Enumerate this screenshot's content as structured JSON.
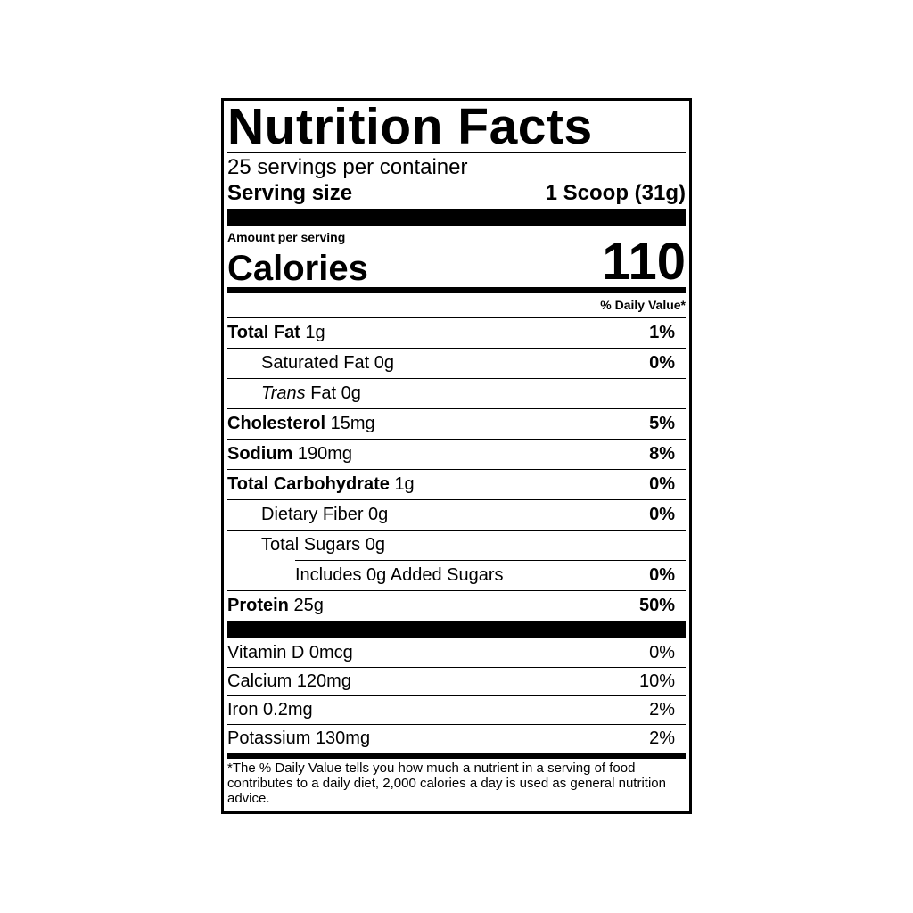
{
  "header": {
    "title": "Nutrition Facts",
    "servings": "25 servings per container",
    "serving_size_label": "Serving size",
    "serving_size": "1 Scoop (31g)"
  },
  "calories": {
    "amount_label": "Amount per serving",
    "label": "Calories",
    "value": "110"
  },
  "daily_value_header": "% Daily Value*",
  "nutrients": [
    {
      "name": "Total Fat",
      "amount": "1g",
      "dv": "1%",
      "sub": [
        {
          "name": "Saturated Fat",
          "amount": "0g",
          "dv": "0%"
        },
        {
          "name_italic": "Trans",
          "name": "Fat",
          "amount": "0g"
        }
      ]
    },
    {
      "name": "Cholesterol",
      "amount": "15mg",
      "dv": "5%"
    },
    {
      "name": "Sodium",
      "amount": "190mg",
      "dv": "8%"
    },
    {
      "name": "Total Carbohydrate",
      "amount": "1g",
      "dv": "0%",
      "sub": [
        {
          "name": "Dietary Fiber",
          "amount": "0g",
          "dv": "0%"
        },
        {
          "name": "Total Sugars",
          "amount": "0g",
          "sub": [
            {
              "name": "Includes 0g Added Sugars",
              "dv": "0%"
            }
          ]
        }
      ]
    },
    {
      "name": "Protein",
      "amount": "25g",
      "dv": "50%"
    }
  ],
  "vitamins": [
    {
      "name": "Vitamin D",
      "amount": "0mcg",
      "dv": "0%"
    },
    {
      "name": "Calcium",
      "amount": "120mg",
      "dv": "10%"
    },
    {
      "name": "Iron",
      "amount": "0.2mg",
      "dv": "2%"
    },
    {
      "name": "Potassium",
      "amount": "130mg",
      "dv": "2%"
    }
  ],
  "footnote": "*The % Daily Value tells you how much a nutrient in a serving of food contributes to a daily diet, 2,000 calories a day is used as general nutrition advice."
}
